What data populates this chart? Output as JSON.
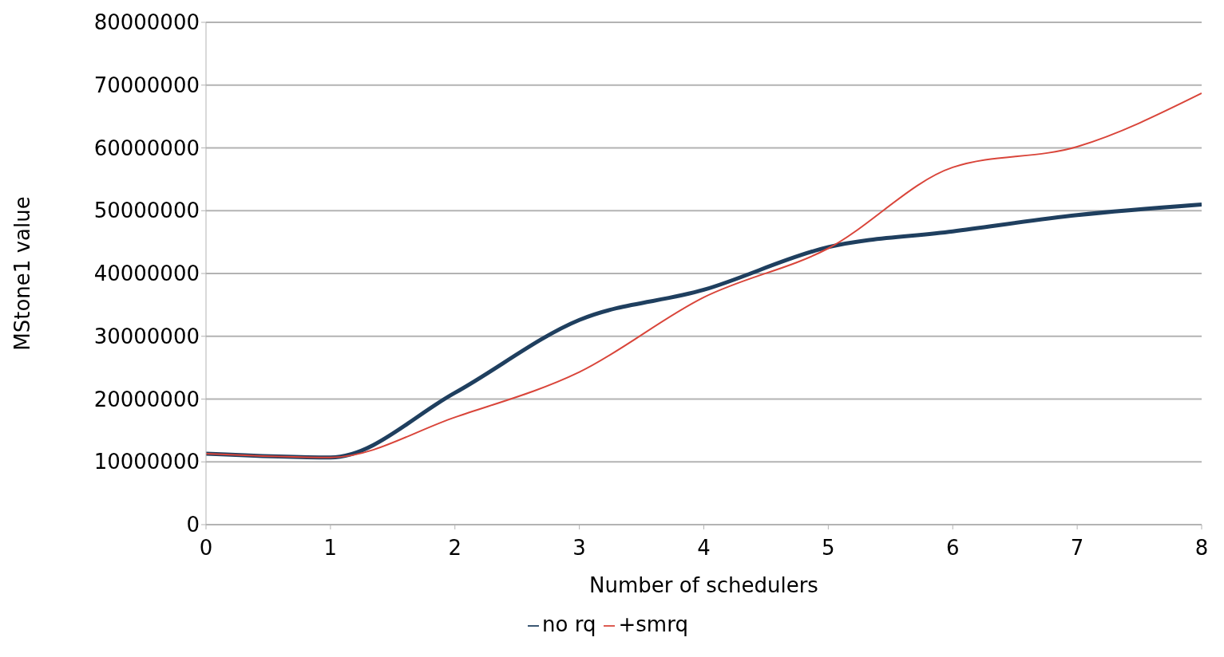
{
  "chart_data": {
    "type": "line",
    "xlabel": "Number of schedulers",
    "ylabel": "MStone1 value",
    "x": [
      0,
      1,
      2,
      3,
      4,
      5,
      6,
      7,
      8
    ],
    "series": [
      {
        "name": "no rq",
        "color": "#1f3f5f",
        "values": [
          11300000,
          10700000,
          21000000,
          32600000,
          37400000,
          44200000,
          46700000,
          49300000,
          51000000
        ]
      },
      {
        "name": "+smrq",
        "color": "#d9453a",
        "values": [
          11300000,
          10700000,
          17100000,
          24300000,
          36200000,
          44000000,
          56900000,
          60200000,
          68700000
        ]
      }
    ],
    "xlim": [
      0,
      8
    ],
    "xticks": [
      0,
      1,
      2,
      3,
      4,
      5,
      6,
      7,
      8
    ],
    "ylim": [
      0,
      80000000
    ],
    "yticks": [
      0,
      10000000,
      20000000,
      30000000,
      40000000,
      50000000,
      60000000,
      70000000,
      80000000
    ],
    "grid": "y",
    "legend": "bottom",
    "marker": "none",
    "line_style": "solid"
  }
}
